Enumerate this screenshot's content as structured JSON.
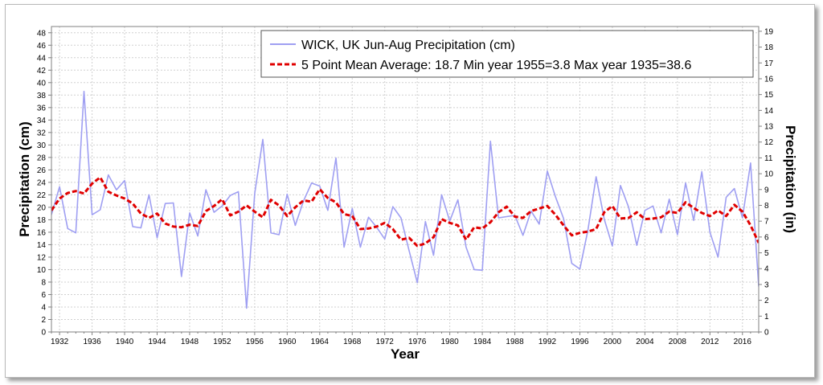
{
  "chart_data": {
    "type": "line",
    "title": "",
    "xlabel": "Year",
    "ylabel": "Precipitation (cm)",
    "ylabel_right": "Precipitation (in)",
    "xlim": [
      1931,
      2018
    ],
    "ylim": [
      0,
      49
    ],
    "ylim_right": [
      0,
      19.3
    ],
    "grid": true,
    "legend_position": "top-right",
    "x_ticks": [
      1932,
      1936,
      1940,
      1944,
      1948,
      1952,
      1956,
      1960,
      1964,
      1968,
      1972,
      1976,
      1980,
      1984,
      1988,
      1992,
      1996,
      2000,
      2004,
      2008,
      2012,
      2016
    ],
    "y_ticks": [
      0,
      2,
      4,
      6,
      8,
      10,
      12,
      14,
      16,
      18,
      20,
      22,
      24,
      26,
      28,
      30,
      32,
      34,
      36,
      38,
      40,
      42,
      44,
      46,
      48
    ],
    "y_ticks_right": [
      0,
      1,
      2,
      3,
      4,
      5,
      6,
      7,
      8,
      9,
      10,
      11,
      12,
      13,
      14,
      15,
      16,
      17,
      18,
      19
    ],
    "colors": {
      "series": "#9f9ff2",
      "mean": "#e00000",
      "grid": "#d0d0d0",
      "axis": "#808080"
    },
    "legend": {
      "series_label": "WICK, UK  Jun-Aug  Precipitation (cm)",
      "mean_label": "5 Point Mean  Average: 18.7  Min year 1955=3.8  Max year 1935=38.6"
    },
    "series": [
      {
        "name": "WICK, UK  Jun-Aug  Precipitation (cm)",
        "style": "solid",
        "x": [
          1931,
          1932,
          1933,
          1934,
          1935,
          1936,
          1937,
          1938,
          1939,
          1940,
          1941,
          1942,
          1943,
          1944,
          1945,
          1946,
          1947,
          1948,
          1949,
          1950,
          1951,
          1952,
          1953,
          1954,
          1955,
          1956,
          1957,
          1958,
          1959,
          1960,
          1961,
          1962,
          1963,
          1964,
          1965,
          1966,
          1967,
          1968,
          1969,
          1970,
          1971,
          1972,
          1973,
          1974,
          1975,
          1976,
          1977,
          1978,
          1979,
          1980,
          1981,
          1982,
          1983,
          1984,
          1985,
          1986,
          1987,
          1988,
          1989,
          1990,
          1991,
          1992,
          1993,
          1994,
          1995,
          1996,
          1997,
          1998,
          1999,
          2000,
          2001,
          2002,
          2003,
          2004,
          2005,
          2006,
          2007,
          2008,
          2009,
          2010,
          2011,
          2012,
          2013,
          2014,
          2015,
          2016,
          2017,
          2018
        ],
        "values": [
          18.8,
          23.3,
          16.6,
          15.9,
          38.6,
          18.8,
          19.6,
          25.2,
          22.8,
          24.3,
          16.9,
          16.7,
          22.0,
          15.1,
          20.6,
          20.7,
          8.9,
          19.1,
          15.4,
          22.8,
          19.2,
          20.2,
          21.9,
          22.5,
          3.8,
          22.2,
          30.9,
          15.9,
          15.6,
          22.1,
          17.1,
          21.0,
          23.9,
          23.4,
          19.5,
          27.9,
          13.6,
          19.8,
          13.6,
          18.4,
          16.8,
          14.9,
          20.1,
          18.3,
          13.0,
          7.9,
          17.7,
          12.3,
          22.0,
          17.8,
          21.2,
          13.6,
          10.0,
          9.9,
          30.6,
          18.3,
          18.5,
          18.7,
          15.5,
          19.4,
          17.3,
          25.8,
          21.7,
          18.2,
          11.0,
          10.1,
          16.4,
          24.9,
          18.1,
          13.8,
          23.5,
          20.0,
          13.9,
          19.5,
          20.2,
          15.9,
          21.3,
          15.6,
          23.9,
          17.9,
          25.7,
          16.0,
          12.0,
          21.6,
          23.0,
          18.3,
          27.1,
          7.3
        ]
      },
      {
        "name": "5 Point Mean",
        "style": "dashed",
        "x": [
          1931,
          1932,
          1933,
          1934,
          1935,
          1936,
          1937,
          1938,
          1939,
          1940,
          1941,
          1942,
          1943,
          1944,
          1945,
          1946,
          1947,
          1948,
          1949,
          1950,
          1951,
          1952,
          1953,
          1954,
          1955,
          1956,
          1957,
          1958,
          1959,
          1960,
          1961,
          1962,
          1963,
          1964,
          1965,
          1966,
          1967,
          1968,
          1969,
          1970,
          1971,
          1972,
          1973,
          1974,
          1975,
          1976,
          1977,
          1978,
          1979,
          1980,
          1981,
          1982,
          1983,
          1984,
          1985,
          1986,
          1987,
          1988,
          1989,
          1990,
          1991,
          1992,
          1993,
          1994,
          1995,
          1996,
          1997,
          1998,
          1999,
          2000,
          2001,
          2002,
          2003,
          2004,
          2005,
          2006,
          2007,
          2008,
          2009,
          2010,
          2011,
          2012,
          2013,
          2014,
          2015,
          2016,
          2017,
          2018
        ],
        "values": [
          19.5,
          21.4,
          22.3,
          22.6,
          22.2,
          23.8,
          24.8,
          22.5,
          21.9,
          21.4,
          20.6,
          19.0,
          18.3,
          19.0,
          17.4,
          16.9,
          16.8,
          17.2,
          17.0,
          19.4,
          20.2,
          21.3,
          18.7,
          19.3,
          20.3,
          19.3,
          18.4,
          21.2,
          20.3,
          18.6,
          20.0,
          21.1,
          20.9,
          22.9,
          21.5,
          20.8,
          18.9,
          18.6,
          16.5,
          16.6,
          16.9,
          17.5,
          16.5,
          14.8,
          15.1,
          13.8,
          14.2,
          15.2,
          18.1,
          17.5,
          17.1,
          14.8,
          16.8,
          16.6,
          17.6,
          19.2,
          20.1,
          18.5,
          18.3,
          19.4,
          19.8,
          20.2,
          18.8,
          17.1,
          15.5,
          15.9,
          16.1,
          16.5,
          19.2,
          20.2,
          18.2,
          18.3,
          19.2,
          18.1,
          18.2,
          18.4,
          19.3,
          19.1,
          20.8,
          19.9,
          19.1,
          18.6,
          19.5,
          18.6,
          20.4,
          19.3,
          17.1,
          14.3
        ]
      }
    ]
  }
}
